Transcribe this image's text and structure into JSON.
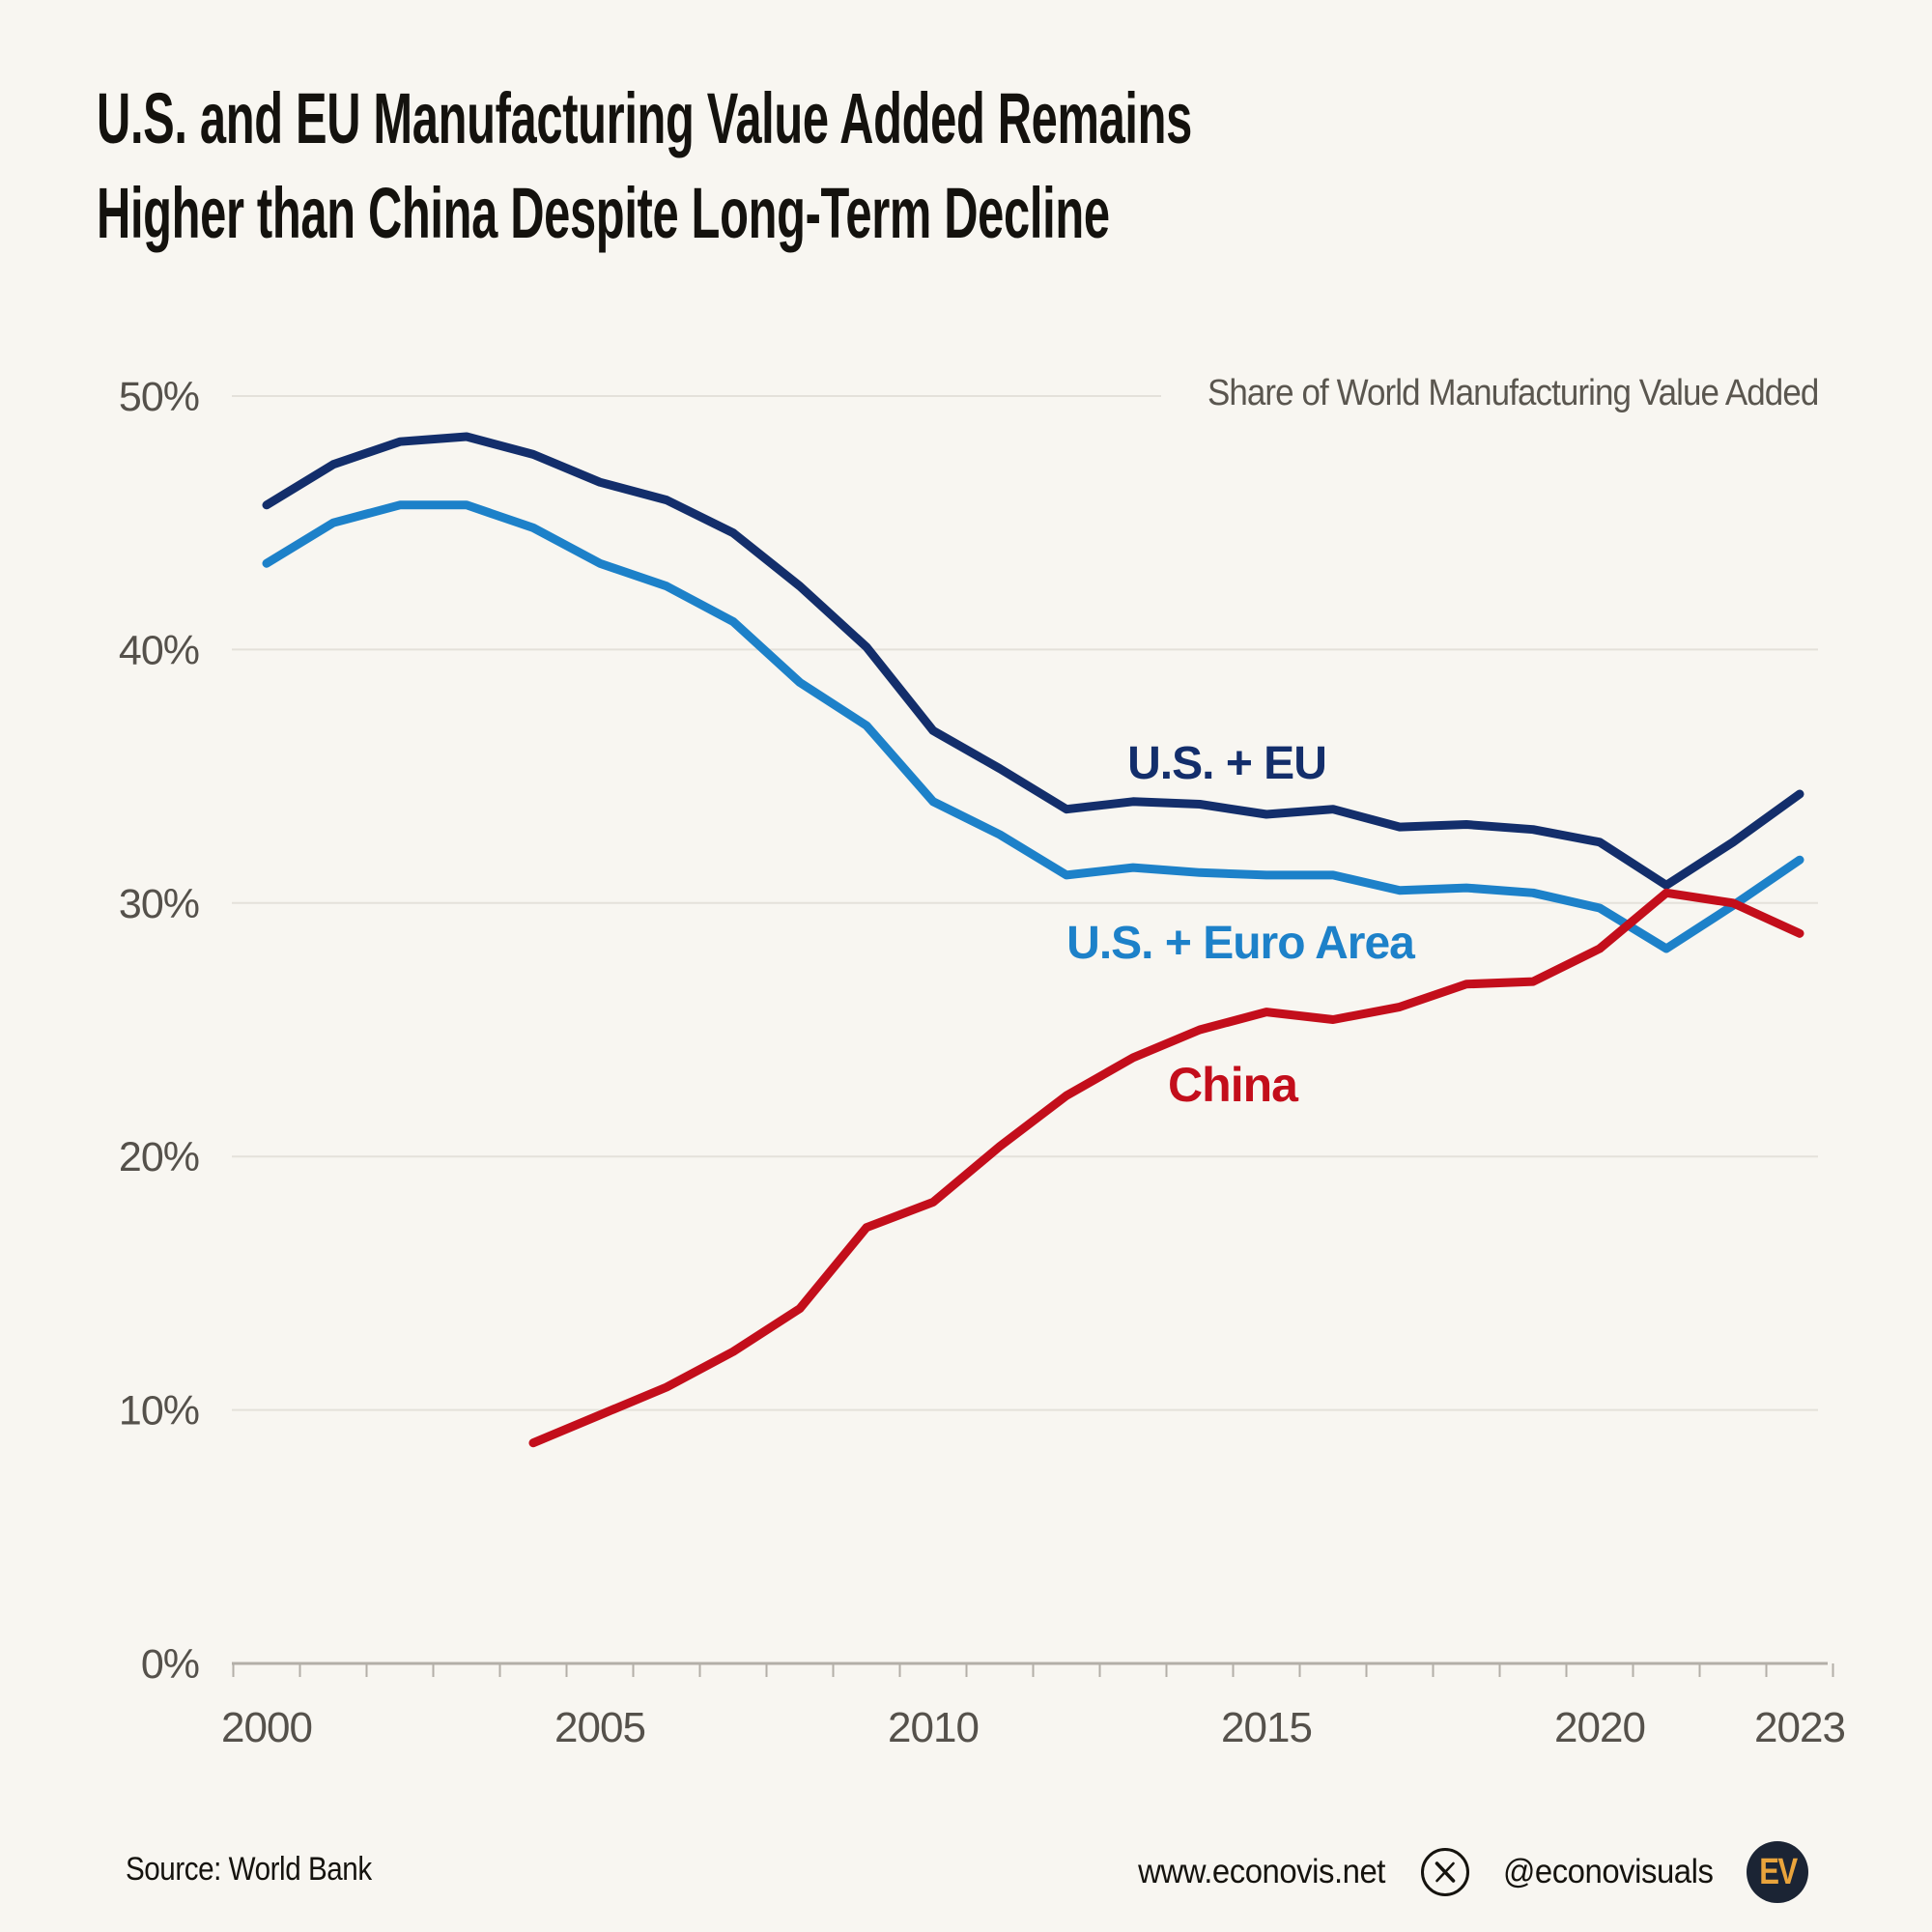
{
  "title": {
    "line1": "U.S. and EU Manufacturing Value Added Remains",
    "line2": "Higher than China Despite Long-Term Decline"
  },
  "chart_data": {
    "type": "line",
    "note": "Share of World Manufacturing Value Added",
    "x_axis": {
      "range": [
        2000,
        2023
      ],
      "labeled_years": [
        2000,
        2005,
        2010,
        2015,
        2020,
        2023
      ],
      "minor_tick_step_years": 1
    },
    "y_axis": {
      "ticks": [
        "0%",
        "10%",
        "20%",
        "30%",
        "40%",
        "50%"
      ],
      "tick_values": [
        0,
        10,
        20,
        30,
        40,
        50
      ],
      "ylim": [
        0,
        52
      ],
      "grid": true
    },
    "legend": "inline-labels",
    "series": [
      {
        "name": "U.S. + EU",
        "color": "#132e6b",
        "start_year": 2000,
        "values": [
          45.7,
          47.3,
          48.2,
          48.4,
          47.7,
          46.6,
          45.9,
          44.6,
          42.5,
          40.1,
          36.8,
          35.3,
          33.7,
          34.0,
          33.9,
          33.5,
          33.7,
          33.0,
          33.1,
          32.9,
          32.4,
          30.7,
          32.4,
          34.3
        ]
      },
      {
        "name": "U.S. + Euro Area",
        "color": "#1d81c9",
        "start_year": 2000,
        "values": [
          43.4,
          45.0,
          45.7,
          45.7,
          44.8,
          43.4,
          42.5,
          41.1,
          38.7,
          37.0,
          34.0,
          32.7,
          31.1,
          31.4,
          31.2,
          31.1,
          31.1,
          30.5,
          30.6,
          30.4,
          29.8,
          28.2,
          29.9,
          31.7
        ]
      },
      {
        "name": "China",
        "color": "#c30e1b",
        "start_year": 2004,
        "values": [
          8.7,
          9.8,
          10.9,
          12.3,
          14.0,
          17.2,
          18.2,
          20.4,
          22.4,
          23.9,
          25.0,
          25.7,
          25.4,
          25.9,
          26.8,
          26.9,
          28.2,
          30.4,
          30.0,
          28.8
        ]
      }
    ]
  },
  "theme": {
    "background": "#f8f6f1",
    "gridline": "#e4e1da",
    "axis": "#b3afa8",
    "tick_label": "#55514b",
    "title": "#14120e",
    "note": "#5a564f"
  },
  "footer": {
    "source": "Source: World Bank",
    "website": "www.econovis.net",
    "social_handle": "@econovisuals",
    "logo_text": "EV"
  }
}
